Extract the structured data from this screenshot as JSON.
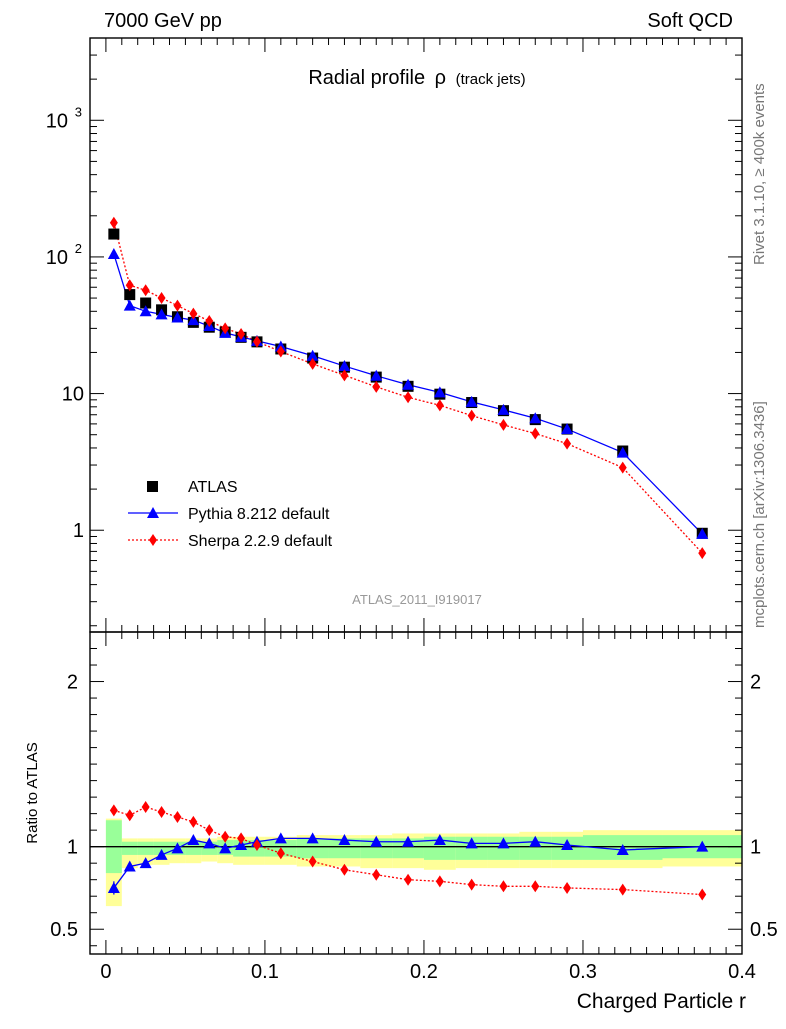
{
  "header": {
    "left": "7000 GeV pp",
    "right": "Soft QCD"
  },
  "side_labels": {
    "rivet": "Rivet 3.1.10, ≥ 400k events",
    "mcplots": "mcplots.cern.ch [arXiv:1306.3436]"
  },
  "colors": {
    "atlas": "#000000",
    "pythia": "#0000ff",
    "sherpa": "#ff0000",
    "band_yellow": "#ffff99",
    "band_green": "#99ff99",
    "watermark": "#999999"
  },
  "chart_data": [
    {
      "type": "scatter",
      "panel": "main",
      "title": "Radial profile",
      "title_symbol": "ρ",
      "title_suffix": "(track jets)",
      "watermark": "ATLAS_2011_I919017",
      "yscale": "log",
      "xlim": [
        -0.01,
        0.4
      ],
      "ylim": [
        0.18,
        4000
      ],
      "ylabel": "",
      "legend_position": "middle-left",
      "y_ticks": [
        {
          "value": 1,
          "base": "1",
          "exp": ""
        },
        {
          "value": 10,
          "base": "10",
          "exp": ""
        },
        {
          "value": 100,
          "base": "10",
          "exp": "2"
        },
        {
          "value": 1000,
          "base": "10",
          "exp": "3"
        }
      ],
      "x": [
        0.005,
        0.015,
        0.025,
        0.035,
        0.045,
        0.055,
        0.065,
        0.075,
        0.085,
        0.095,
        0.11,
        0.13,
        0.15,
        0.17,
        0.19,
        0.21,
        0.23,
        0.25,
        0.27,
        0.29,
        0.325,
        0.375
      ],
      "series": [
        {
          "name": "ATLAS",
          "marker": "square",
          "color": "#000000",
          "values": [
            147,
            53,
            46,
            41,
            36.5,
            33.2,
            30.6,
            28.2,
            25.8,
            23.9,
            21.2,
            18.2,
            15.6,
            13.2,
            11.3,
            9.9,
            8.6,
            7.5,
            6.45,
            5.5,
            3.8,
            0.95
          ]
        },
        {
          "name": "Pythia 8.212 default",
          "marker": "triangle",
          "color": "#0000ff",
          "line": "solid",
          "values": [
            105,
            44,
            40,
            38,
            36,
            34.5,
            31.2,
            27.8,
            26,
            24.3,
            22.1,
            18.9,
            15.9,
            13.5,
            11.6,
            10.2,
            8.7,
            7.6,
            6.6,
            5.5,
            3.7,
            0.94
          ]
        },
        {
          "name": "Sherpa 2.2.9 default",
          "marker": "diamond",
          "color": "#ff0000",
          "line": "dotted",
          "values": [
            178,
            62,
            57,
            50,
            44,
            38.5,
            34,
            30,
            27.3,
            24,
            20.3,
            16.5,
            13.6,
            11.2,
            9.4,
            8.2,
            6.9,
            5.9,
            5.1,
            4.3,
            2.87,
            0.68
          ]
        }
      ]
    },
    {
      "type": "scatter",
      "panel": "ratio",
      "ylabel": "Ratio to ATLAS",
      "xlabel": "Charged Particle r",
      "yscale": "linear",
      "xlim": [
        -0.01,
        0.4
      ],
      "ylim": [
        0.35,
        2.3
      ],
      "x_ticks": [
        0,
        0.1,
        0.2,
        0.3,
        0.4
      ],
      "x_tick_labels": [
        "0",
        "0.1",
        "0.2",
        "0.3",
        "0.4"
      ],
      "y_ticks": [
        0.5,
        1,
        2
      ],
      "y_tick_labels": [
        "0.5",
        "1",
        "2"
      ],
      "bins": [
        [
          0,
          0.01
        ],
        [
          0.01,
          0.02
        ],
        [
          0.02,
          0.03
        ],
        [
          0.03,
          0.04
        ],
        [
          0.04,
          0.05
        ],
        [
          0.05,
          0.06
        ],
        [
          0.06,
          0.07
        ],
        [
          0.07,
          0.08
        ],
        [
          0.08,
          0.09
        ],
        [
          0.09,
          0.1
        ],
        [
          0.1,
          0.12
        ],
        [
          0.12,
          0.14
        ],
        [
          0.14,
          0.16
        ],
        [
          0.16,
          0.18
        ],
        [
          0.18,
          0.2
        ],
        [
          0.2,
          0.22
        ],
        [
          0.22,
          0.24
        ],
        [
          0.24,
          0.26
        ],
        [
          0.26,
          0.28
        ],
        [
          0.28,
          0.3
        ],
        [
          0.3,
          0.35
        ],
        [
          0.35,
          0.4
        ]
      ],
      "band_yellow": {
        "lo": [
          0.64,
          0.87,
          0.89,
          0.89,
          0.9,
          0.9,
          0.91,
          0.9,
          0.89,
          0.89,
          0.89,
          0.88,
          0.88,
          0.87,
          0.87,
          0.86,
          0.87,
          0.87,
          0.87,
          0.87,
          0.87,
          0.88
        ],
        "hi": [
          1.17,
          1.05,
          1.05,
          1.05,
          1.05,
          1.05,
          1.05,
          1.06,
          1.06,
          1.06,
          1.06,
          1.07,
          1.07,
          1.07,
          1.08,
          1.08,
          1.08,
          1.08,
          1.09,
          1.09,
          1.1,
          1.1
        ]
      },
      "band_green": {
        "lo": [
          0.84,
          0.95,
          0.95,
          0.95,
          0.95,
          0.95,
          0.95,
          0.95,
          0.94,
          0.94,
          0.94,
          0.93,
          0.93,
          0.93,
          0.93,
          0.92,
          0.92,
          0.92,
          0.92,
          0.92,
          0.92,
          0.93
        ],
        "hi": [
          1.16,
          1.03,
          1.03,
          1.03,
          1.03,
          1.03,
          1.03,
          1.04,
          1.04,
          1.04,
          1.04,
          1.05,
          1.05,
          1.05,
          1.05,
          1.06,
          1.06,
          1.06,
          1.06,
          1.06,
          1.07,
          1.07
        ]
      },
      "x": [
        0.005,
        0.015,
        0.025,
        0.035,
        0.045,
        0.055,
        0.065,
        0.075,
        0.085,
        0.095,
        0.11,
        0.13,
        0.15,
        0.17,
        0.19,
        0.21,
        0.23,
        0.25,
        0.27,
        0.29,
        0.325,
        0.375
      ],
      "series": [
        {
          "name": "Pythia 8.212 default",
          "marker": "triangle",
          "color": "#0000ff",
          "line": "solid",
          "values": [
            0.75,
            0.88,
            0.9,
            0.95,
            0.99,
            1.04,
            1.02,
            0.99,
            1.01,
            1.03,
            1.05,
            1.05,
            1.04,
            1.03,
            1.03,
            1.04,
            1.02,
            1.02,
            1.03,
            1.01,
            0.98,
            1.0
          ],
          "errors": [
            0.04,
            0.02,
            0,
            0,
            0,
            0,
            0,
            0,
            0,
            0,
            0,
            0,
            0,
            0,
            0,
            0,
            0,
            0,
            0,
            0,
            0,
            0
          ]
        },
        {
          "name": "Sherpa 2.2.9 default",
          "marker": "diamond",
          "color": "#ff0000",
          "line": "dotted",
          "values": [
            1.22,
            1.19,
            1.24,
            1.21,
            1.18,
            1.15,
            1.1,
            1.06,
            1.05,
            1.01,
            0.96,
            0.91,
            0.86,
            0.83,
            0.8,
            0.79,
            0.77,
            0.76,
            0.76,
            0.75,
            0.74,
            0.71
          ]
        }
      ]
    }
  ]
}
